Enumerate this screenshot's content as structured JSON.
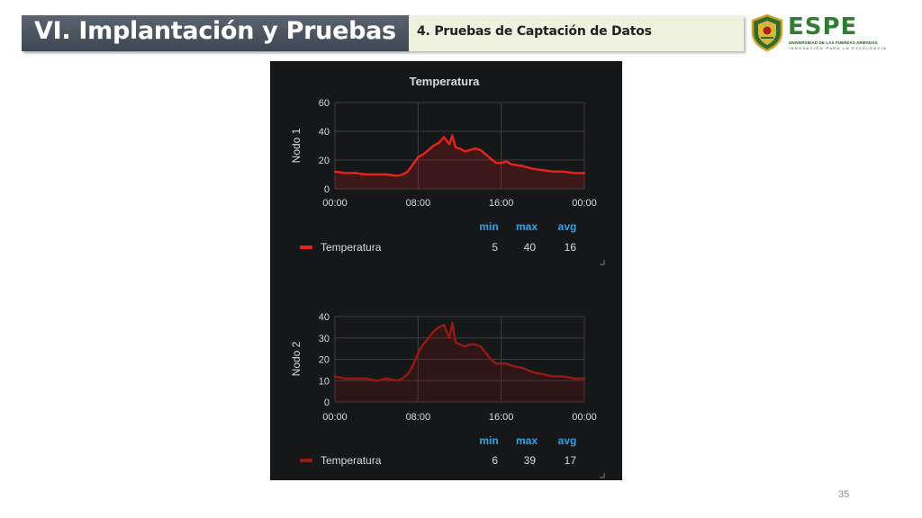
{
  "slide": {
    "title": "VI. Implantación y Pruebas",
    "subtitle": "4. Pruebas de Captación de Datos",
    "page_number": "35"
  },
  "logo": {
    "name": "ESPE",
    "line1": "UNIVERSIDAD DE LAS FUERZAS ARMADAS",
    "line2": "INNOVACIÓN PARA LA EXCELENCIA"
  },
  "colors": {
    "title_bar": "#4a535e",
    "subtitle_box": "#eef2df",
    "panel_bg": "#161719",
    "series_node1": "#e8231c",
    "series_node2": "#9a1812",
    "stat_header": "#33a2e5"
  },
  "chart_data": [
    {
      "type": "line",
      "title": "Temperatura",
      "ylabel": "Nodo 1",
      "ylim": [
        0,
        60
      ],
      "yticks": [
        0,
        20,
        40,
        60
      ],
      "xticks": [
        "00:00",
        "08:00",
        "16:00",
        "00:00"
      ],
      "grid": true,
      "series": [
        {
          "name": "Temperatura",
          "color": "#e8231c",
          "x": [
            0,
            1,
            2,
            3,
            4,
            5,
            6,
            6.5,
            7,
            7.5,
            8,
            8.5,
            9,
            9.5,
            10,
            10.5,
            11,
            11.3,
            11.6,
            12,
            12.5,
            13,
            13.5,
            14,
            14.5,
            15,
            15.5,
            16,
            16.5,
            17,
            18,
            19,
            20,
            21,
            22,
            23,
            24
          ],
          "values": [
            12,
            11,
            11,
            10,
            10,
            10,
            9,
            10,
            12,
            17,
            22,
            24,
            27,
            30,
            32,
            36,
            31,
            37,
            29,
            28,
            26,
            27,
            28,
            27,
            24,
            21,
            18,
            18,
            19,
            17,
            16,
            14,
            13,
            12,
            12,
            11,
            11
          ]
        }
      ],
      "stats": {
        "headers": [
          "min",
          "max",
          "avg"
        ],
        "values": [
          "5",
          "40",
          "16"
        ]
      }
    },
    {
      "type": "line",
      "title": "",
      "ylabel": "Nodo 2",
      "ylim": [
        0,
        40
      ],
      "yticks": [
        0,
        10,
        20,
        30,
        40
      ],
      "xticks": [
        "00:00",
        "08:00",
        "16:00",
        "00:00"
      ],
      "grid": true,
      "series": [
        {
          "name": "Temperatura",
          "color": "#9a1812",
          "x": [
            0,
            1,
            2,
            3,
            4,
            5,
            6,
            6.5,
            7,
            7.5,
            8,
            8.5,
            9,
            9.5,
            10,
            10.5,
            11,
            11.3,
            11.6,
            12,
            12.5,
            13,
            13.5,
            14,
            14.5,
            15,
            15.5,
            16,
            16.5,
            17,
            18,
            19,
            20,
            21,
            22,
            23,
            24
          ],
          "values": [
            12,
            11,
            11,
            11,
            10,
            11,
            10,
            11,
            13,
            17,
            23,
            27,
            30,
            33,
            35,
            36,
            30,
            37,
            28,
            27,
            26,
            27,
            27,
            26,
            23,
            20,
            18,
            18,
            18,
            17,
            16,
            14,
            13,
            12,
            12,
            11,
            11
          ]
        }
      ],
      "stats": {
        "headers": [
          "min",
          "max",
          "avg"
        ],
        "values": [
          "6",
          "39",
          "17"
        ]
      }
    }
  ]
}
